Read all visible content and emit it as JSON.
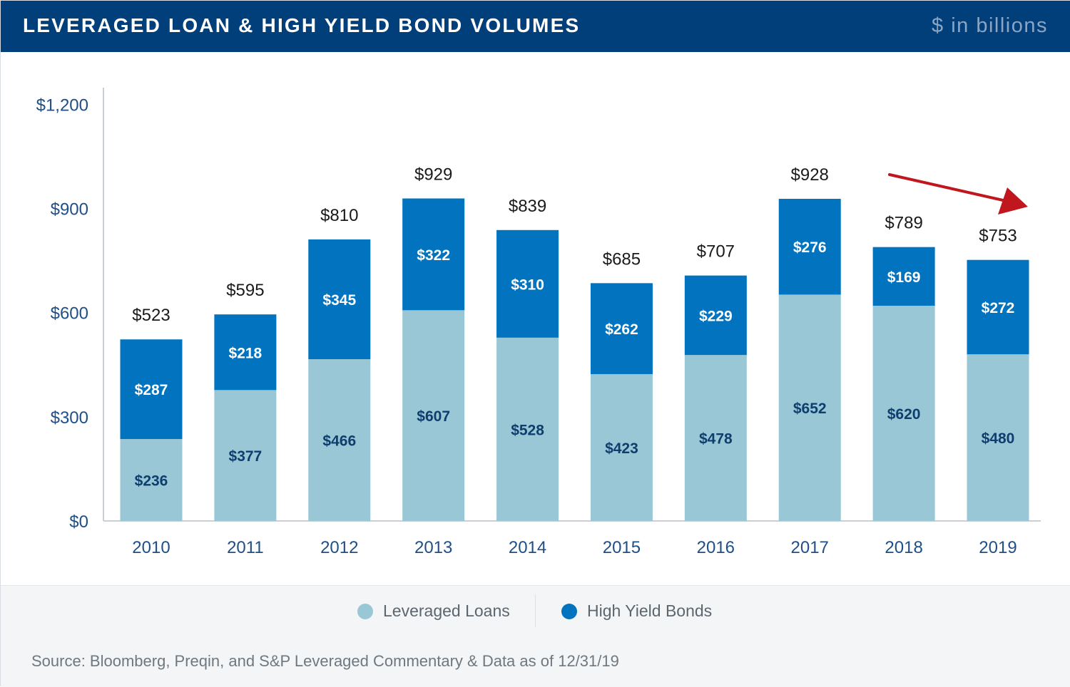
{
  "header": {
    "title": "LEVERAGED LOAN & HIGH YIELD BOND VOLUMES",
    "units": "$ in billions"
  },
  "legend": {
    "items": [
      {
        "label": "Leveraged Loans",
        "color": "#9ac7d6"
      },
      {
        "label": "High Yield Bonds",
        "color": "#0173bf"
      }
    ]
  },
  "source": "Source:  Bloomberg, Preqin, and S&P Leveraged Commentary & Data as of 12/31/19",
  "colors": {
    "loans": "#9ac7d6",
    "bonds": "#0173bf",
    "loan_label": "#0e3e6e",
    "bond_label": "#ffffff",
    "arrow": "#c0171f",
    "axis": "#c9cfd5"
  },
  "chart_data": {
    "type": "bar",
    "stacked": true,
    "categories": [
      "2010",
      "2011",
      "2012",
      "2013",
      "2014",
      "2015",
      "2016",
      "2017",
      "2018",
      "2019"
    ],
    "series": [
      {
        "name": "Leveraged Loans",
        "values": [
          236,
          377,
          466,
          607,
          528,
          423,
          478,
          652,
          620,
          480
        ]
      },
      {
        "name": "High Yield Bonds",
        "values": [
          287,
          218,
          345,
          322,
          310,
          262,
          229,
          276,
          169,
          272
        ]
      }
    ],
    "totals": [
      523,
      595,
      810,
      929,
      839,
      685,
      707,
      928,
      789,
      753
    ],
    "yticks": [
      0,
      300,
      600,
      900,
      1200
    ],
    "ylim": [
      0,
      1240
    ],
    "value_prefix": "$",
    "annotation": "trend arrow pointing down from 2017 to 2019",
    "grid": false,
    "legend_position": "bottom"
  }
}
